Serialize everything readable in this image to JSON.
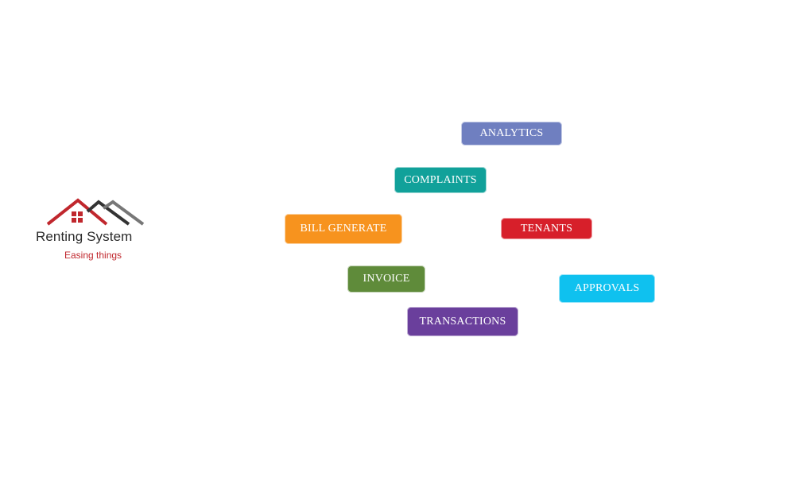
{
  "logo": {
    "title": "Renting System",
    "tagline": "Easing things",
    "icon": "house-roofs-icon",
    "colors": {
      "roof_red": "#c0272d",
      "roof_dark": "#333333",
      "roof_gray": "#777777",
      "tagline": "#c0272d"
    }
  },
  "menu": {
    "analytics": {
      "label": "ANALYTICS",
      "color": "#6f7fc0"
    },
    "complaints": {
      "label": "COMPLAINTS",
      "color": "#11a19a"
    },
    "bill_generate": {
      "label": "BILL GENERATE",
      "color": "#f7931e"
    },
    "tenants": {
      "label": "TENANTS",
      "color": "#d71f2a"
    },
    "invoice": {
      "label": "INVOICE",
      "color": "#5f8b3a"
    },
    "approvals": {
      "label": "APPROVALS",
      "color": "#0fc1ef"
    },
    "transactions": {
      "label": "TRANSACTIONS",
      "color": "#6a3f9c"
    }
  }
}
